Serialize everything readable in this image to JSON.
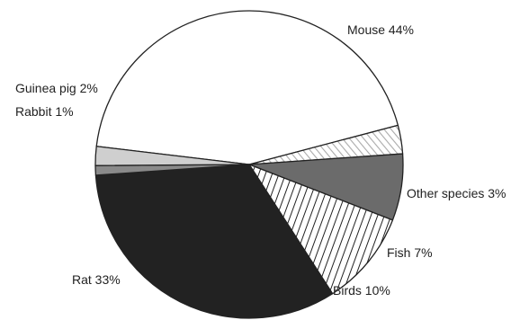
{
  "chart_data": {
    "type": "pie",
    "title": "",
    "slices": [
      {
        "label": "Mouse",
        "value": 44,
        "label_text": "Mouse 44%",
        "fill": "#ffffff",
        "pattern": "none"
      },
      {
        "label": "Other species",
        "value": 3,
        "label_text": "Other species 3%",
        "fill": "#dddddd",
        "pattern": "diagonal-light"
      },
      {
        "label": "Fish",
        "value": 7,
        "label_text": "Fish 7%",
        "fill": "#6b6b6b",
        "pattern": "none"
      },
      {
        "label": "Birds",
        "value": 10,
        "label_text": "Birds 10%",
        "fill": "#ffffff",
        "pattern": "diagonal-dark"
      },
      {
        "label": "Rat",
        "value": 33,
        "label_text": "Rat 33%",
        "fill": "#222222",
        "pattern": "none"
      },
      {
        "label": "Rabbit",
        "value": 1,
        "label_text": "Rabbit 1%",
        "fill": "#8a8a8a",
        "pattern": "none"
      },
      {
        "label": "Guinea pig",
        "value": 2,
        "label_text": "Guinea pig 2%",
        "fill": "#cfcfcf",
        "pattern": "none"
      }
    ],
    "start_direction": "center-left",
    "order": "clockwise",
    "legend": "none",
    "colors": {
      "outline": "#222222",
      "text": "#222222"
    }
  }
}
